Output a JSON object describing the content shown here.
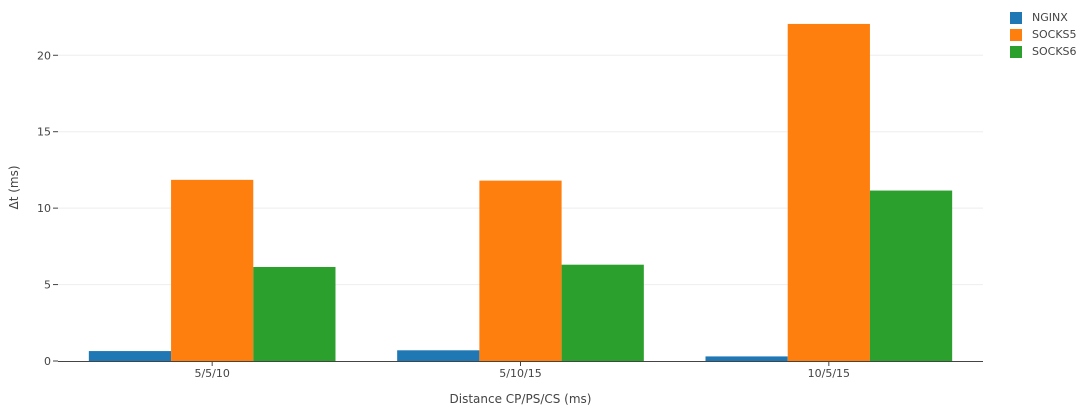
{
  "chart_data": {
    "type": "bar",
    "categories": [
      "5/5/10",
      "5/10/15",
      "10/5/15"
    ],
    "series": [
      {
        "name": "NGINX",
        "values": [
          0.65,
          0.7,
          0.3
        ],
        "color": "#1f77b4"
      },
      {
        "name": "SOCKS5",
        "values": [
          11.85,
          11.8,
          22.05
        ],
        "color": "#ff7f0e"
      },
      {
        "name": "SOCKS6",
        "values": [
          6.15,
          6.3,
          11.15
        ],
        "color": "#2ca02c"
      }
    ],
    "title": "",
    "xlabel": "Distance CP/PS/CS (ms)",
    "ylabel": "Δt (ms)",
    "ylim": [
      0,
      22.7
    ],
    "yticks": [
      0,
      5,
      10,
      15,
      20
    ],
    "grid": true,
    "legend_position": "top-right"
  }
}
